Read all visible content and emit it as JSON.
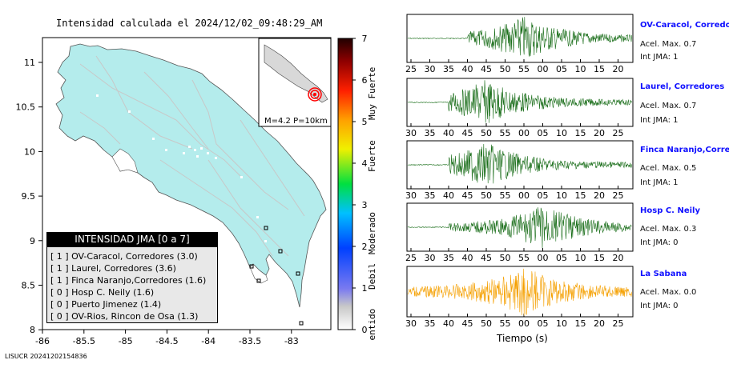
{
  "title": "Intensidad calculada el 2024/12/02_09:48:29_AM",
  "footer": "LISUCR 20241202154836",
  "map": {
    "x_ticks": [
      "-86",
      "-85.5",
      "-85",
      "-84.5",
      "-84",
      "-83.5",
      "-83"
    ],
    "y_ticks": [
      "11",
      "10.5",
      "10",
      "9.5",
      "9",
      "8.5",
      "8"
    ],
    "inset_label": "M=4.2 P=10km",
    "colors": {
      "land": "#b4ecec",
      "water": "#ffffff",
      "epicenter": "#ff0000"
    }
  },
  "legend": {
    "title": "INTENSIDAD JMA [0 a 7]",
    "items": [
      "[ 1 ]  OV-Caracol, Corredores (3.0)",
      "[ 1 ]  Laurel, Corredores (3.6)",
      "[ 1 ]  Finca Naranjo,Corredores (1.6)",
      "[ 0 ]  Hosp C. Neily (1.6)",
      "[ 0 ]  Puerto Jimenez (1.4)",
      "[ 0 ]  OV-Rios, Rincon de Osa (1.3)"
    ]
  },
  "colorbar": {
    "ticks": [
      "7",
      "6",
      "5",
      "4",
      "3",
      "2",
      "1",
      "0"
    ],
    "bands": [
      "Muy Fuerte",
      "Fuerte",
      "Moderado",
      "Debil",
      "No sentido"
    ]
  },
  "chart_data": [
    {
      "type": "line",
      "title": "OV-Caracol, Corredores",
      "peak_acceleration": "Acel. Max. 0.7",
      "intensity": "Int JMA: 1",
      "x_tick_labels": [
        "25",
        "30",
        "35",
        "40",
        "45",
        "50",
        "55",
        "00",
        "05",
        "10",
        "15",
        "20"
      ],
      "trace_color": "#1a6e1a",
      "signal_onset_tick": "40",
      "peak_tick": "55"
    },
    {
      "type": "line",
      "title": "Laurel, Corredores",
      "peak_acceleration": "Acel. Max. 0.7",
      "intensity": "Int JMA: 1",
      "x_tick_labels": [
        "30",
        "35",
        "40",
        "45",
        "50",
        "55",
        "00",
        "05",
        "10",
        "15",
        "20",
        "25"
      ],
      "trace_color": "#1a6e1a",
      "signal_onset_tick": "40",
      "peak_tick": "50"
    },
    {
      "type": "line",
      "title": "Finca Naranjo,Corredores",
      "peak_acceleration": "Acel. Max. 0.5",
      "intensity": "Int JMA: 1",
      "x_tick_labels": [
        "30",
        "35",
        "40",
        "45",
        "50",
        "55",
        "00",
        "05",
        "10",
        "15",
        "20",
        "25"
      ],
      "trace_color": "#1a6e1a",
      "signal_onset_tick": "40",
      "peak_tick": "50"
    },
    {
      "type": "line",
      "title": "Hosp C. Neily",
      "peak_acceleration": "Acel. Max. 0.3",
      "intensity": "Int JMA: 0",
      "x_tick_labels": [
        "25",
        "30",
        "35",
        "40",
        "45",
        "50",
        "55",
        "00",
        "05",
        "10",
        "15",
        "20"
      ],
      "trace_color": "#1a6e1a",
      "signal_onset_tick": "35",
      "peak_tick": "00"
    },
    {
      "type": "line",
      "title": "La Sabana",
      "peak_acceleration": "Acel. Max. 0.0",
      "intensity": "Int JMA: 0",
      "x_tick_labels": [
        "30",
        "35",
        "40",
        "45",
        "50",
        "55",
        "00",
        "05",
        "10",
        "15",
        "20",
        "25"
      ],
      "trace_color": "#f5a000",
      "signal_onset_tick": "30",
      "peak_tick": "00"
    }
  ],
  "x_axis_label": "Tiempo (s)"
}
